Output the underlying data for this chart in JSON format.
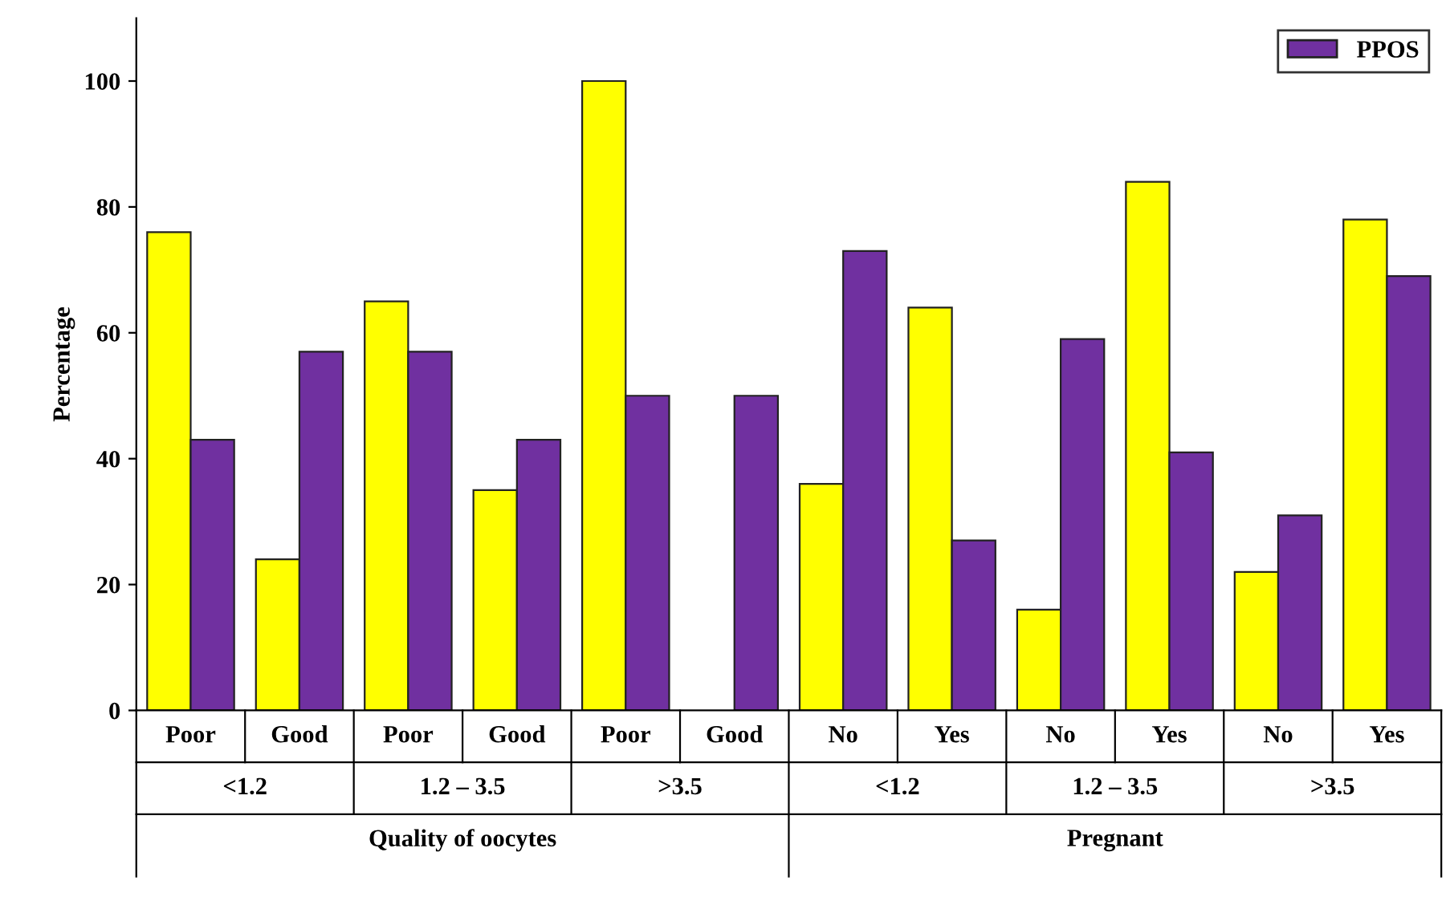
{
  "chart_data": {
    "type": "bar",
    "ylabel": "Percentage",
    "categories": [
      "Poor",
      "Good",
      "Poor",
      "Good",
      "Poor",
      "Good",
      "No",
      "Yes",
      "No",
      "Yes",
      "No",
      "Yes"
    ],
    "series": [
      {
        "color": "#ffff00",
        "values": [
          76,
          24,
          65,
          35,
          100,
          null,
          36,
          64,
          16,
          84,
          22,
          78
        ]
      },
      {
        "name": "PPOS",
        "color": "#7030a0",
        "values": [
          43,
          57,
          57,
          43,
          50,
          50,
          73,
          27,
          59,
          41,
          31,
          69
        ]
      }
    ],
    "annotations": [
      "<1.2",
      "1.2 – 3.5",
      ">3.5",
      "<1.2",
      "1.2 – 3.5",
      ">3.5",
      "Quality of oocytes",
      "Pregnant"
    ],
    "ylim": [
      0,
      110
    ],
    "yticks": [
      0,
      20,
      40,
      60,
      80,
      100
    ],
    "grid": false,
    "legend": "top right"
  }
}
